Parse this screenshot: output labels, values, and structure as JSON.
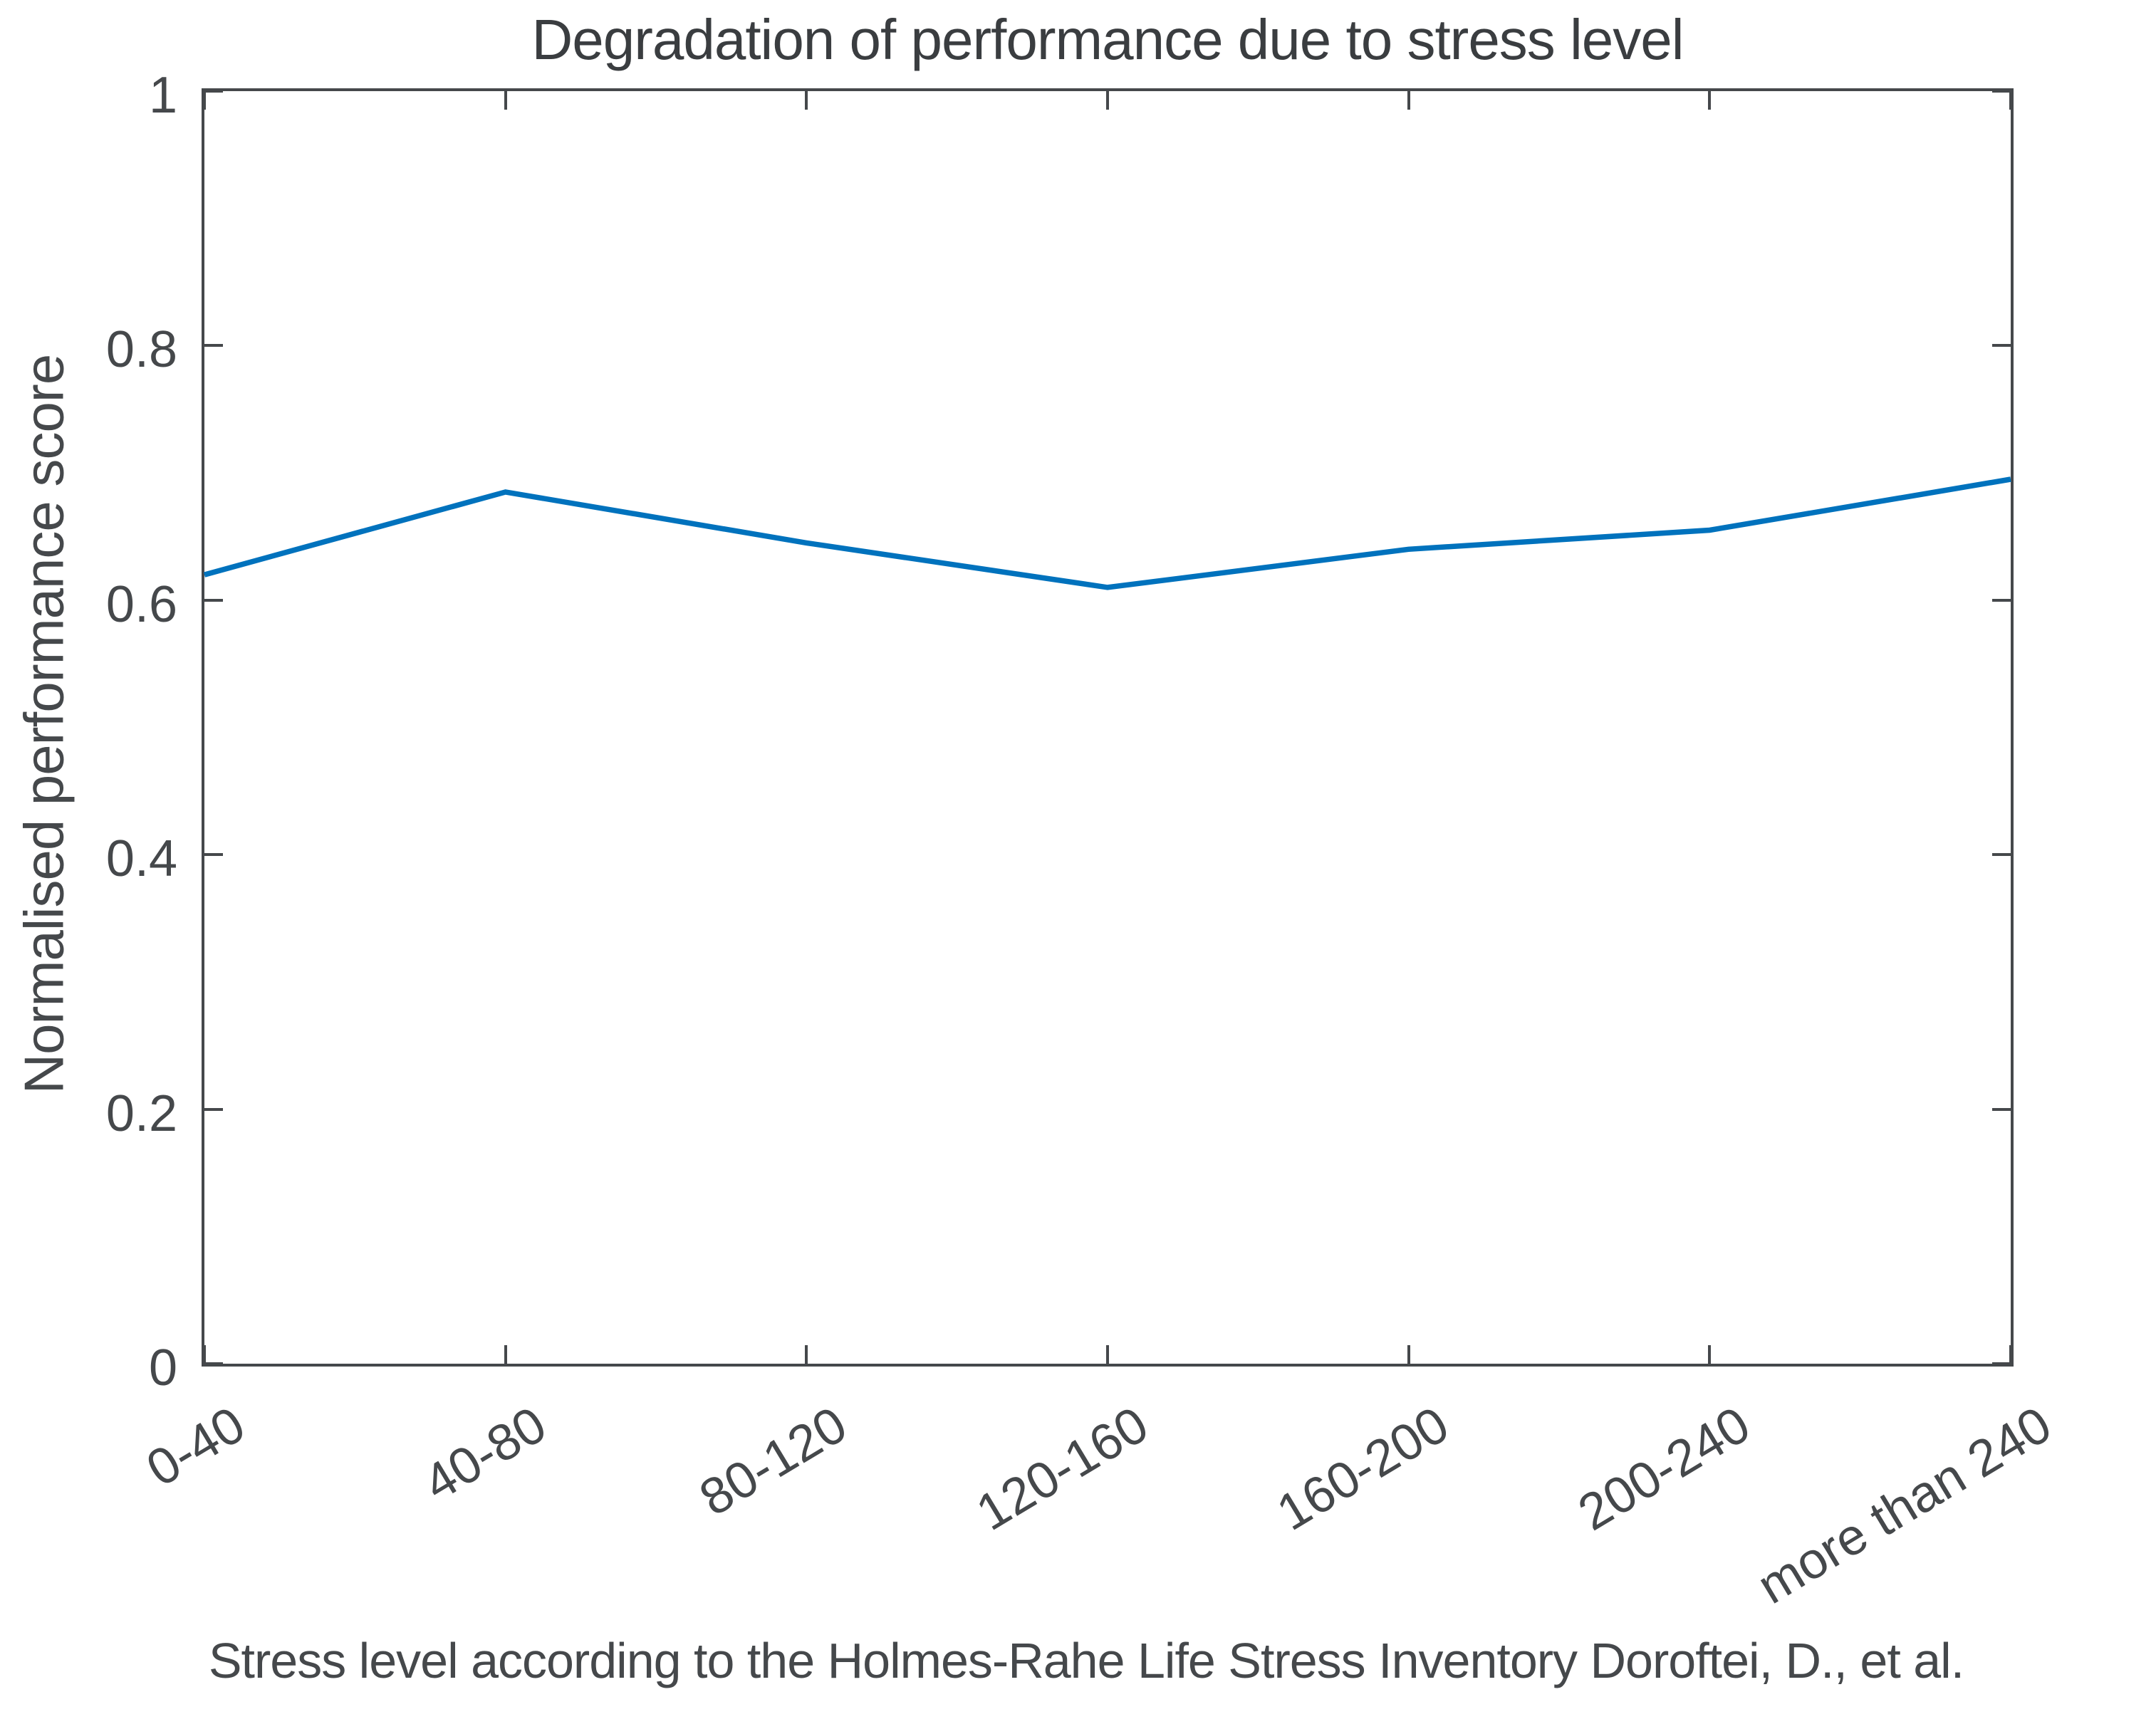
{
  "figure": {
    "title": "Degradation of performance due to stress level",
    "xlabel": "Stress level according to the Holmes-Rahe Life Stress Inventory Doroftei, D., et al.",
    "ylabel": "Normalised performance score"
  },
  "chart_data": {
    "type": "line",
    "title": "Degradation of performance due to stress level",
    "xlabel": "Stress level according to the Holmes-Rahe Life Stress Inventory Doroftei, D., et al.",
    "ylabel": "Normalised performance score",
    "categories": [
      "0-40",
      "40-80",
      "80-120",
      "120-160",
      "160-200",
      "200-240",
      "more than 240"
    ],
    "values": [
      0.62,
      0.685,
      0.645,
      0.61,
      0.64,
      0.655,
      0.695
    ],
    "ylim": [
      0,
      1
    ],
    "yticks": [
      0,
      0.2,
      0.4,
      0.6,
      0.8,
      1
    ],
    "ytick_labels": [
      "0",
      "0.2",
      "0.4",
      "0.6",
      "0.8",
      "1"
    ],
    "xtick_angle_deg": -31,
    "grid": false,
    "legend": null,
    "box": true,
    "tick_direction": "in",
    "line_color": "#0072BD",
    "axis_color": "#45484b",
    "text_color": "#45484b",
    "background_color": "#ffffff"
  }
}
